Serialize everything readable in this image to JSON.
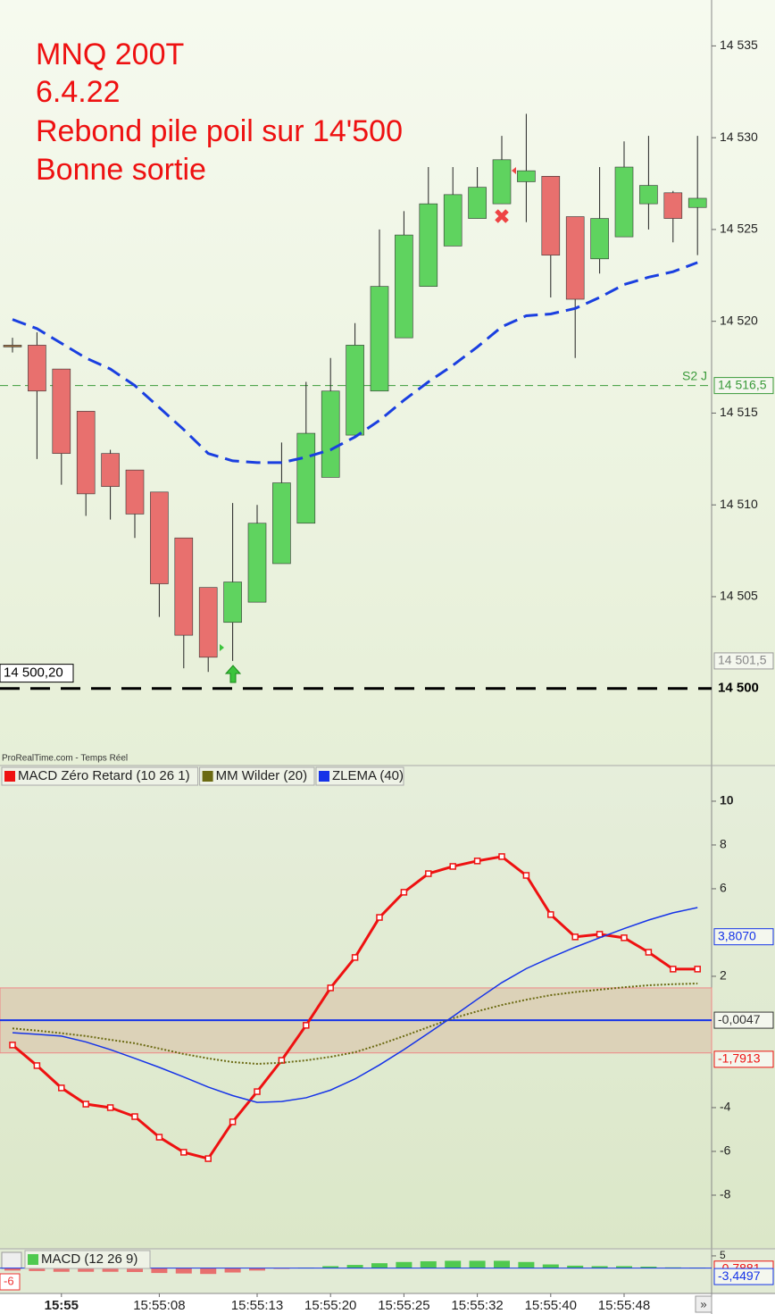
{
  "chart_data": [
    {
      "type": "candlestick",
      "annotations": [
        "MNQ 200T",
        "6.4.22",
        "Rebond pile poil sur 14'500",
        "Bonne sortie"
      ],
      "source": "ProRealTime.com - Temps Réel",
      "categories": [
        null,
        null,
        "15:55",
        null,
        null,
        null,
        "15:55:08",
        null,
        null,
        null,
        "15:55:13",
        null,
        null,
        "15:55:20",
        null,
        null,
        "15:55:25",
        null,
        null,
        "15:55:32",
        null,
        null,
        "15:55:40",
        null,
        null,
        "15:55:48",
        null,
        null,
        null
      ],
      "open": [
        14518.7,
        14518.7,
        14517.4,
        14515.1,
        14512.8,
        14511.9,
        14510.7,
        14508.2,
        14505.5,
        14503.6,
        14504.7,
        14506.8,
        14509.0,
        14511.5,
        14513.8,
        14516.2,
        14519.1,
        14521.9,
        14524.1,
        14525.6,
        14526.4,
        14527.6,
        14527.9,
        14525.7,
        14523.4,
        14524.6,
        14526.4,
        14527.0,
        14526.2
      ],
      "high": [
        14519.1,
        14519.4,
        14517.4,
        14515.1,
        14513.0,
        14511.9,
        14510.7,
        14508.2,
        14505.5,
        14510.1,
        14510.0,
        14513.4,
        14516.7,
        14518.0,
        14519.9,
        14525.0,
        14526.0,
        14528.4,
        14528.4,
        14528.4,
        14530.1,
        14531.3,
        14527.9,
        14525.7,
        14528.4,
        14529.8,
        14530.1,
        14527.1,
        14530.1
      ],
      "low": [
        14518.3,
        14512.5,
        14511.1,
        14509.4,
        14509.2,
        14508.2,
        14503.9,
        14501.1,
        14500.9,
        14501.5,
        14504.7,
        14506.8,
        14509.0,
        14511.5,
        14513.8,
        14516.2,
        14519.1,
        14521.9,
        14524.1,
        14525.6,
        14526.4,
        14525.4,
        14521.3,
        14518.0,
        14522.6,
        14524.6,
        14525.0,
        14524.3,
        14523.6
      ],
      "close": [
        14518.7,
        14516.2,
        14512.8,
        14510.6,
        14511.0,
        14509.5,
        14505.7,
        14502.9,
        14501.7,
        14505.8,
        14509.0,
        14511.2,
        14513.9,
        14516.2,
        14518.7,
        14521.9,
        14524.7,
        14526.4,
        14526.9,
        14527.3,
        14528.8,
        14528.2,
        14523.6,
        14521.2,
        14525.6,
        14528.4,
        14527.4,
        14525.6,
        14526.7
      ],
      "up_color": "#5fd35f",
      "down_color": "#e8706e",
      "overlay": {
        "color": "#1a3fe0",
        "values": [
          14520.1,
          14519.6,
          14518.8,
          14518.0,
          14517.4,
          14516.5,
          14515.3,
          14514.1,
          14512.8,
          14512.4,
          14512.3,
          14512.3,
          14512.6,
          14513.0,
          14513.7,
          14514.6,
          14515.7,
          14516.7,
          14517.6,
          14518.6,
          14519.7,
          14520.3,
          14520.4,
          14520.7,
          14521.3,
          14522.0,
          14522.4,
          14522.7,
          14523.2
        ]
      },
      "levels": [
        {
          "name": "S2 J",
          "value": 14516.5,
          "label": "14 516,5",
          "color": "#3a9a3a",
          "width": 1
        },
        {
          "value": 14500,
          "label": "14 500",
          "color": "#000000",
          "width": 3
        }
      ],
      "axis_markers": [
        {
          "value": 14501.5,
          "label": "14 501,5"
        }
      ],
      "price_box": {
        "value": 14500.2,
        "label": "14 500,20"
      },
      "ylim": [
        14495.9,
        14537.5
      ],
      "yticks": [
        {
          "value": 14505,
          "label": "14 505"
        },
        {
          "value": 14510,
          "label": "14 510"
        },
        {
          "value": 14515,
          "label": "14 515"
        },
        {
          "value": 14520,
          "label": "14 520"
        },
        {
          "value": 14525,
          "label": "14 525"
        },
        {
          "value": 14530,
          "label": "14 530"
        },
        {
          "value": 14535,
          "label": "14 535"
        }
      ]
    },
    {
      "type": "line",
      "series": [
        {
          "name": "MACD Zéro Retard (10 26 1)",
          "color": "#ee1111",
          "values": [
            -1.14,
            -2.08,
            -3.1,
            -3.84,
            -4.0,
            -4.41,
            -5.35,
            -6.04,
            -6.33,
            -4.65,
            -3.27,
            -1.84,
            -0.24,
            1.47,
            2.86,
            4.69,
            5.84,
            6.69,
            7.02,
            7.27,
            7.47,
            6.61,
            4.82,
            3.8,
            3.92,
            3.76,
            3.1,
            2.33,
            2.33
          ]
        },
        {
          "name": "MM Wilder (20)",
          "color": "#6b6a12",
          "values": [
            -0.38,
            -0.48,
            -0.6,
            -0.73,
            -0.9,
            -1.06,
            -1.3,
            -1.55,
            -1.75,
            -1.92,
            -2.0,
            -1.95,
            -1.84,
            -1.68,
            -1.47,
            -1.12,
            -0.73,
            -0.32,
            0.08,
            0.4,
            0.69,
            0.93,
            1.14,
            1.28,
            1.39,
            1.5,
            1.59,
            1.64,
            1.67
          ]
        },
        {
          "name": "ZLEMA (40)",
          "color": "#1533e8",
          "values": [
            -0.58,
            -0.65,
            -0.73,
            -1.0,
            -1.35,
            -1.75,
            -2.16,
            -2.6,
            -3.06,
            -3.45,
            -3.76,
            -3.72,
            -3.55,
            -3.2,
            -2.69,
            -2.05,
            -1.35,
            -0.6,
            0.16,
            0.95,
            1.71,
            2.35,
            2.86,
            3.33,
            3.76,
            4.18,
            4.57,
            4.9,
            5.14
          ]
        }
      ],
      "zone": [
        -1.5,
        1.47
      ],
      "axis_markers": [
        {
          "value": 3.807,
          "label": "3,8070",
          "color": "#1533e8"
        },
        {
          "value": -0.0047,
          "label": "-0,0047",
          "color": "#333333"
        },
        {
          "value": -1.7913,
          "label": "-1,7913",
          "color": "#ee1111"
        }
      ],
      "ylim": [
        -10.45,
        11.63
      ],
      "yticks": [
        -8,
        -6,
        -4,
        2,
        6,
        8,
        10
      ]
    },
    {
      "type": "bar",
      "name": "MACD (12 26 9)",
      "values": [
        -1,
        -1.2,
        -1.5,
        -1.5,
        -1.5,
        -1.6,
        -2,
        -2.2,
        -2.4,
        -1.8,
        -1,
        -0.3,
        0.2,
        0.8,
        1.3,
        2,
        2.5,
        2.8,
        3,
        3,
        3,
        2.5,
        1.5,
        1,
        0.8,
        0.8,
        0.6,
        0.3,
        0.2
      ],
      "up_color": "#4fc94f",
      "down_color": "#e8706e",
      "axis_markers": [
        {
          "value": -0.7881,
          "label": "-0,7881",
          "color": "#ee1111"
        },
        {
          "value": -3.4497,
          "label": "-3,4497",
          "color": "#1533e8"
        }
      ],
      "left_label": "-6",
      "ylim": [
        -10,
        7.9
      ],
      "yticks": [
        5
      ]
    }
  ]
}
